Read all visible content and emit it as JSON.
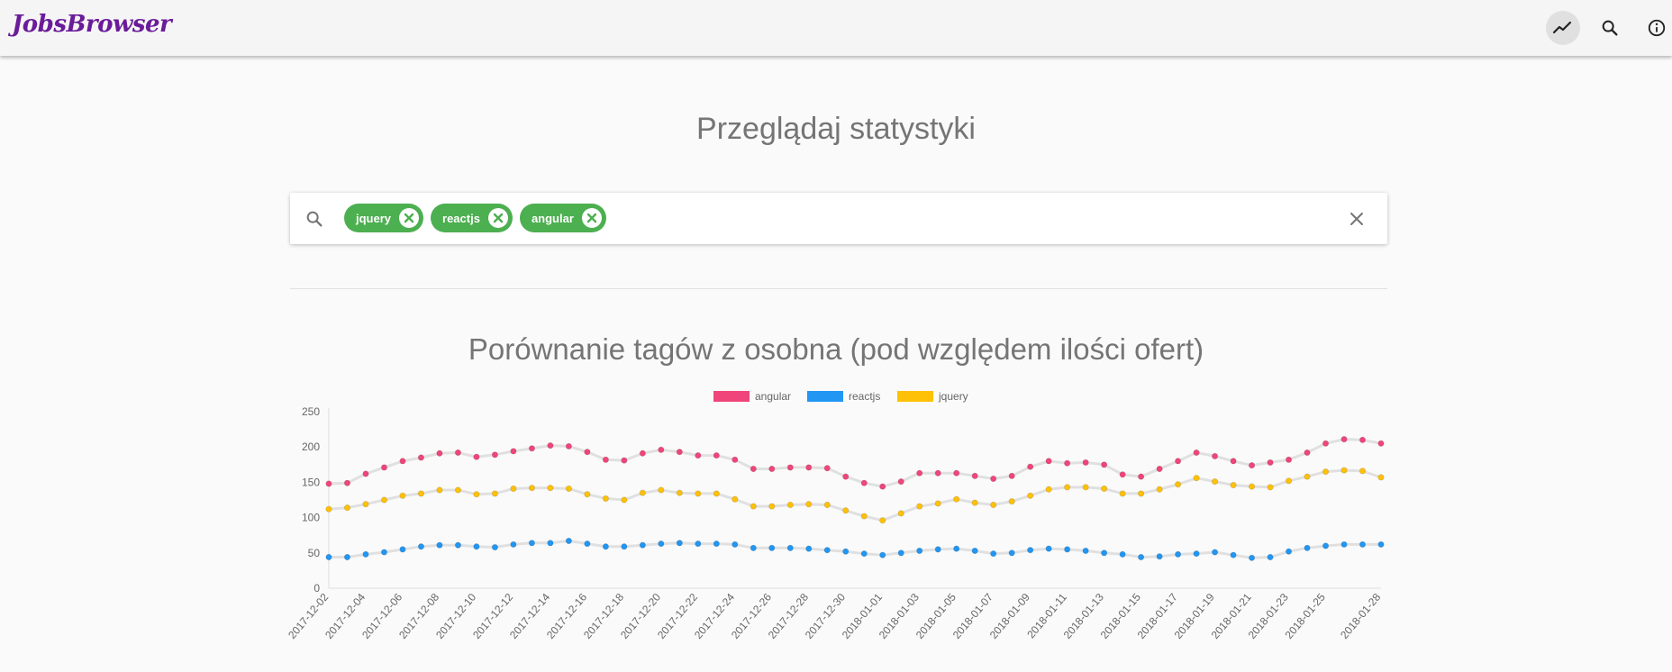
{
  "appbar": {
    "logo": "JobsBrowser",
    "buttons": [
      {
        "name": "stats-icon",
        "active": true
      },
      {
        "name": "search-icon",
        "active": false
      },
      {
        "name": "info-icon",
        "active": false
      }
    ]
  },
  "page": {
    "title": "Przeglądaj statystyki"
  },
  "search": {
    "chips": [
      {
        "label": "jquery"
      },
      {
        "label": "reactjs"
      },
      {
        "label": "angular"
      }
    ]
  },
  "colors": {
    "accent_green": "#4caf50",
    "logo_purple": "#6a1b9a",
    "angular": "#f0457a",
    "reactjs": "#2196f3",
    "jquery": "#ffc107"
  },
  "chart_data": {
    "type": "line",
    "title": "Porównanie tagów z osobna (pod względem ilości ofert)",
    "legend_position": "top-center",
    "ylim": [
      0,
      250
    ],
    "yticks": [
      0,
      50,
      100,
      150,
      200,
      250
    ],
    "grid": false,
    "x": [
      "2017-12-02",
      "2017-12-03",
      "2017-12-04",
      "2017-12-05",
      "2017-12-06",
      "2017-12-07",
      "2017-12-08",
      "2017-12-09",
      "2017-12-10",
      "2017-12-11",
      "2017-12-12",
      "2017-12-13",
      "2017-12-14",
      "2017-12-15",
      "2017-12-16",
      "2017-12-17",
      "2017-12-18",
      "2017-12-19",
      "2017-12-20",
      "2017-12-21",
      "2017-12-22",
      "2017-12-23",
      "2017-12-24",
      "2017-12-25",
      "2017-12-26",
      "2017-12-27",
      "2017-12-28",
      "2017-12-29",
      "2017-12-30",
      "2017-12-31",
      "2018-01-01",
      "2018-01-02",
      "2018-01-03",
      "2018-01-04",
      "2018-01-05",
      "2018-01-06",
      "2018-01-07",
      "2018-01-08",
      "2018-01-09",
      "2018-01-10",
      "2018-01-11",
      "2018-01-12",
      "2018-01-13",
      "2018-01-14",
      "2018-01-15",
      "2018-01-16",
      "2018-01-17",
      "2018-01-18",
      "2018-01-19",
      "2018-01-20",
      "2018-01-21",
      "2018-01-22",
      "2018-01-23",
      "2018-01-24",
      "2018-01-25",
      "2018-01-26",
      "2018-01-27",
      "2018-01-28"
    ],
    "xticks": [
      "2017-12-02",
      "2017-12-04",
      "2017-12-06",
      "2017-12-08",
      "2017-12-10",
      "2017-12-12",
      "2017-12-14",
      "2017-12-16",
      "2017-12-18",
      "2017-12-20",
      "2017-12-22",
      "2017-12-24",
      "2017-12-26",
      "2017-12-28",
      "2017-12-30",
      "2018-01-01",
      "2018-01-03",
      "2018-01-05",
      "2018-01-07",
      "2018-01-09",
      "2018-01-11",
      "2018-01-13",
      "2018-01-15",
      "2018-01-17",
      "2018-01-19",
      "2018-01-21",
      "2018-01-23",
      "2018-01-25",
      "2018-01-28"
    ],
    "series": [
      {
        "name": "angular",
        "color": "#f0457a",
        "values": [
          148,
          149,
          162,
          171,
          180,
          185,
          191,
          192,
          186,
          189,
          194,
          198,
          202,
          201,
          193,
          182,
          181,
          191,
          196,
          193,
          188,
          188,
          182,
          169,
          169,
          171,
          171,
          170,
          158,
          149,
          144,
          151,
          163,
          163,
          163,
          159,
          155,
          159,
          172,
          180,
          177,
          178,
          175,
          161,
          158,
          169,
          180,
          192,
          187,
          180,
          174,
          178,
          182,
          192,
          205,
          211,
          210,
          205
        ]
      },
      {
        "name": "reactjs",
        "color": "#2196f3",
        "values": [
          44,
          44,
          48,
          51,
          55,
          59,
          61,
          61,
          59,
          58,
          62,
          64,
          64,
          67,
          63,
          59,
          59,
          61,
          63,
          64,
          63,
          63,
          62,
          57,
          57,
          57,
          56,
          54,
          52,
          49,
          47,
          50,
          53,
          55,
          56,
          53,
          49,
          50,
          54,
          56,
          55,
          53,
          50,
          48,
          44,
          45,
          48,
          49,
          51,
          47,
          43,
          44,
          52,
          57,
          60,
          62,
          62,
          62
        ]
      },
      {
        "name": "jquery",
        "color": "#ffc107",
        "values": [
          112,
          114,
          119,
          125,
          131,
          134,
          139,
          139,
          133,
          134,
          141,
          142,
          142,
          141,
          133,
          127,
          125,
          135,
          139,
          135,
          134,
          134,
          126,
          116,
          116,
          118,
          119,
          118,
          110,
          102,
          96,
          106,
          116,
          120,
          126,
          121,
          118,
          123,
          131,
          140,
          143,
          143,
          141,
          134,
          134,
          140,
          147,
          156,
          151,
          146,
          144,
          143,
          152,
          158,
          165,
          167,
          166,
          157
        ]
      }
    ]
  }
}
